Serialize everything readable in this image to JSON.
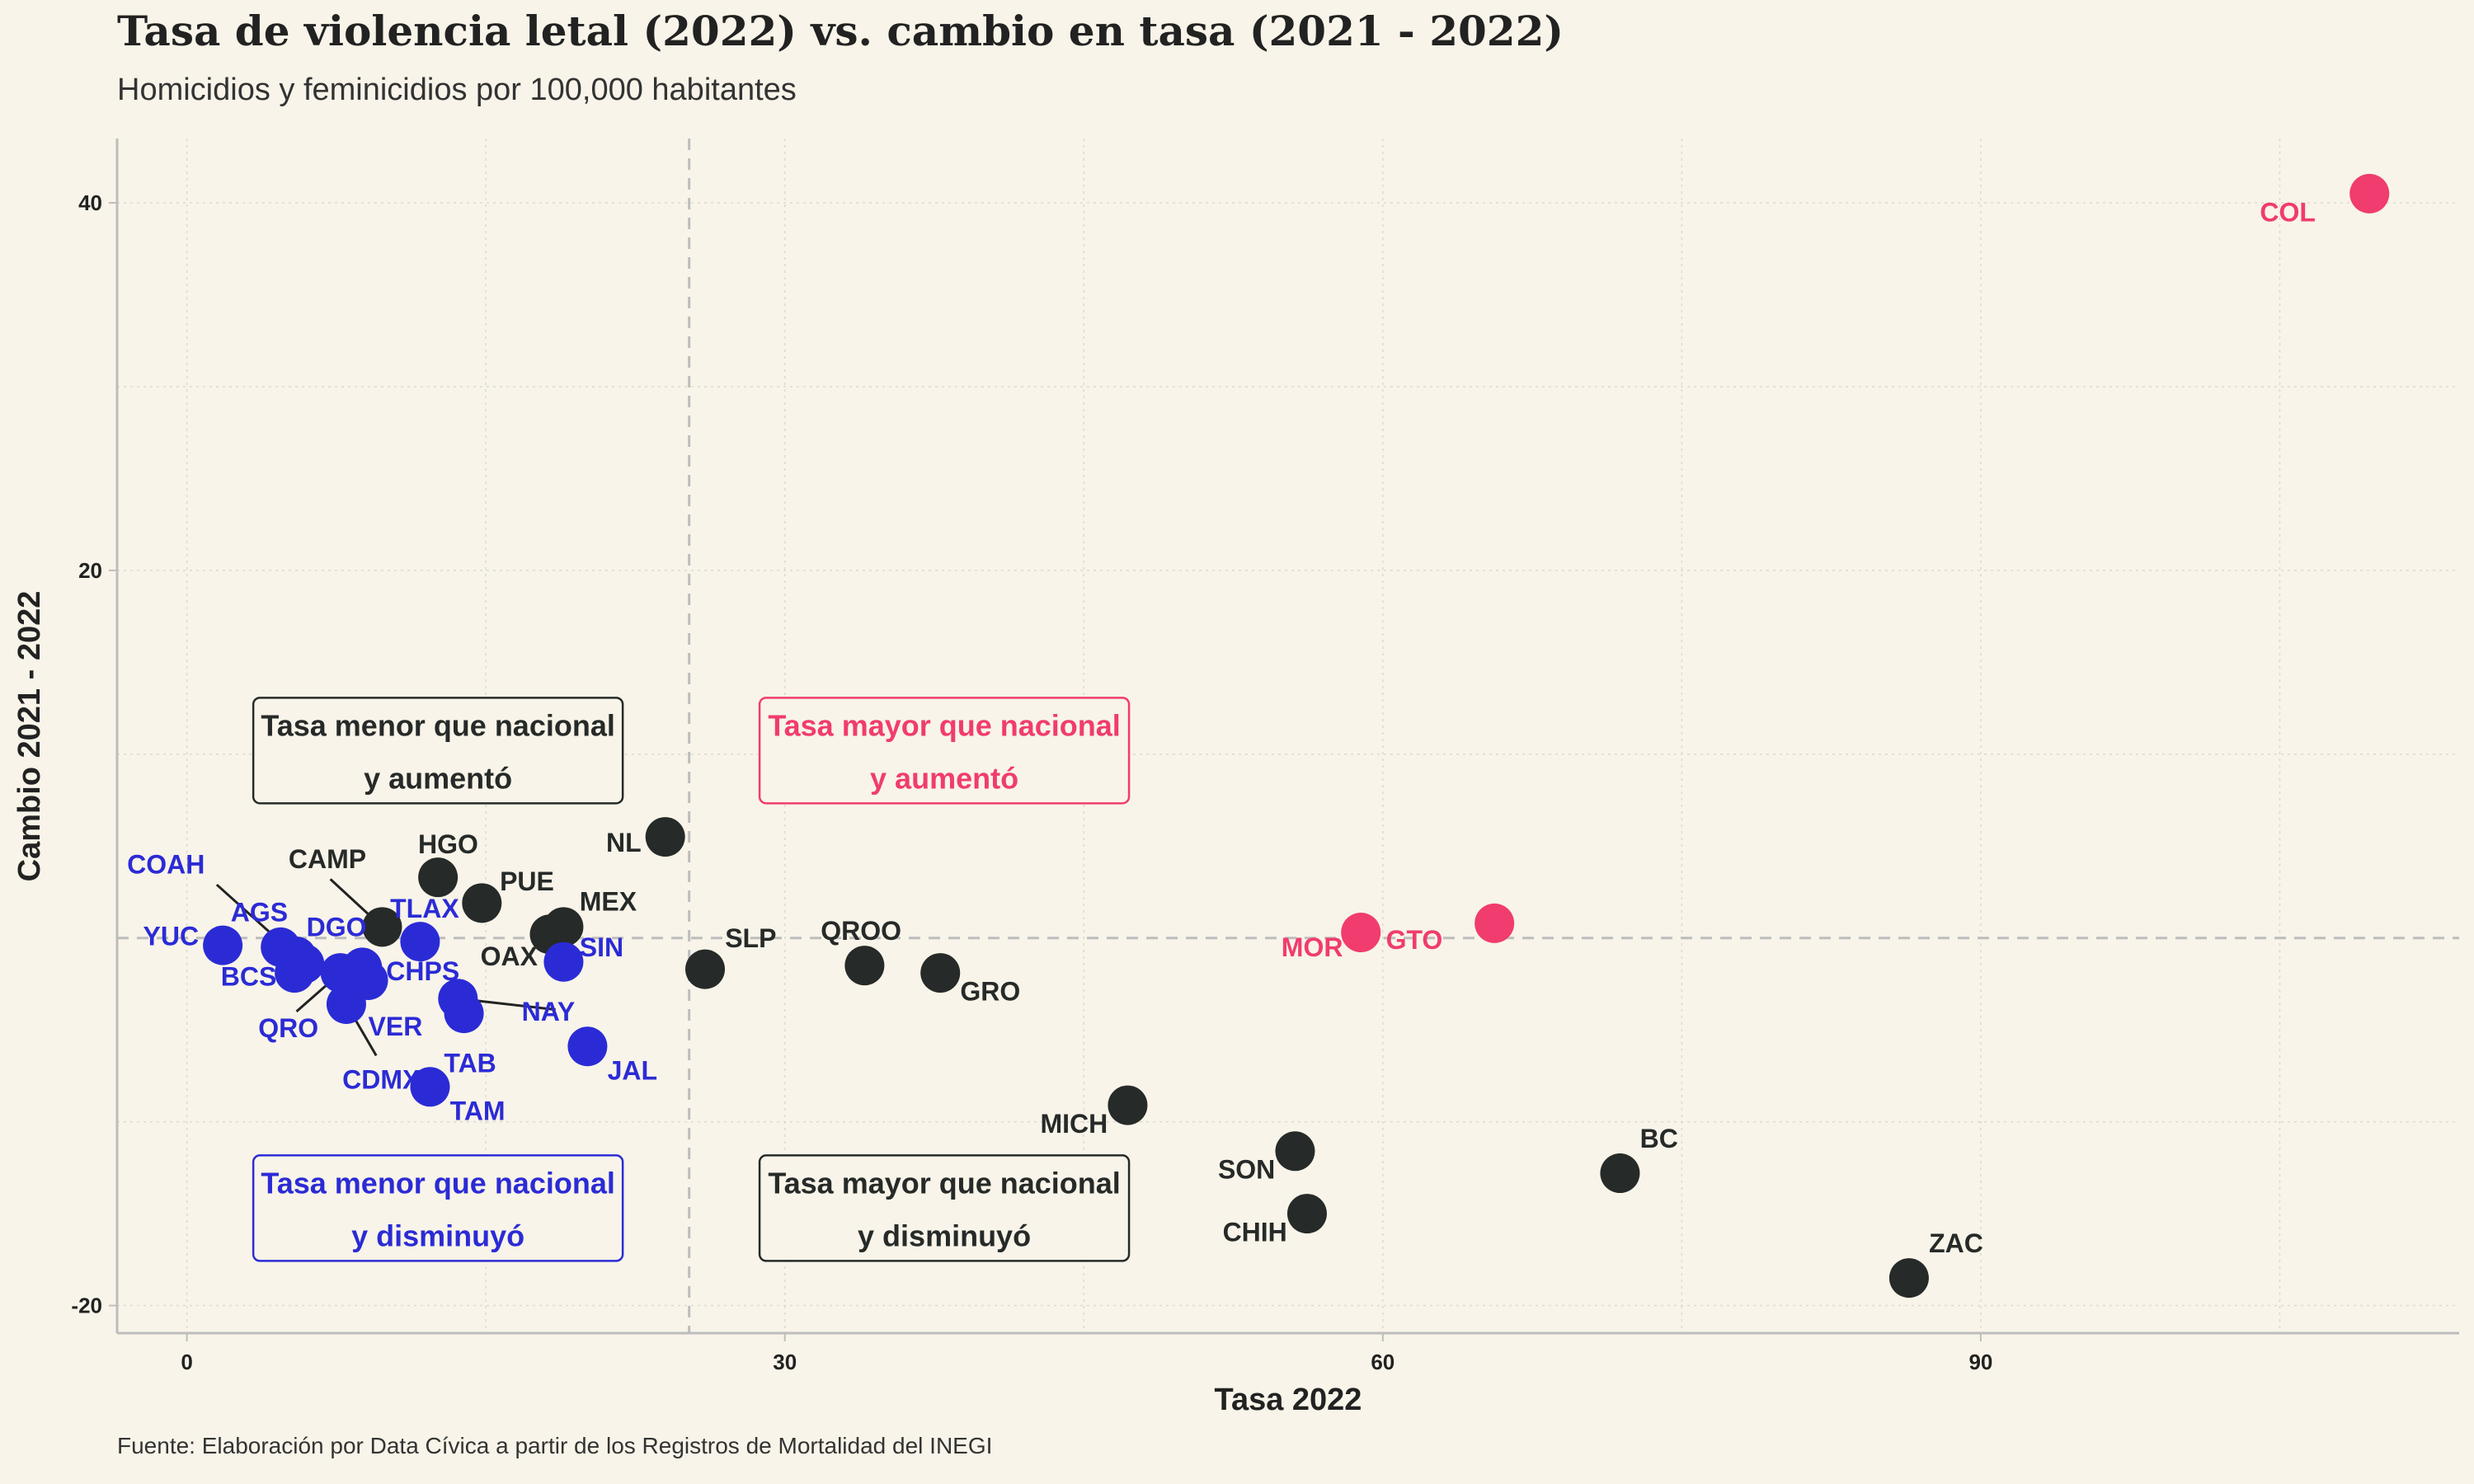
{
  "title": "Tasa de violencia letal (2022) vs. cambio en tasa (2021 - 2022)",
  "subtitle": "Homicidios y feminicidios por 100,000 habitantes",
  "source": "Fuente: Elaboración por Data Cívica a partir de los Registros de Mortalidad del INEGI",
  "colors": {
    "background": "#f8f4e9",
    "menor_disminuyo": "#2b2bd6",
    "mayor_aumento": "#f03c6e",
    "otros": "#262a28",
    "grid": "#dcd9cf",
    "axis": "#bdbdbd",
    "reference": "#bdbdbd"
  },
  "chart_data": {
    "type": "scatter",
    "title": "Tasa de violencia letal (2022) vs. cambio en tasa (2021 - 2022)",
    "xlabel": "Tasa 2022",
    "ylabel": "Cambio 2021 - 2022",
    "xlim": [
      -3.5,
      114
    ],
    "ylim": [
      -21.5,
      43.5
    ],
    "xticks": [
      0,
      30,
      60,
      90
    ],
    "yticks": [
      -20,
      20,
      40
    ],
    "ytick_labels": [
      "-20",
      "20",
      "40"
    ],
    "xtick_labels": [
      "0",
      "30",
      "60",
      "90"
    ],
    "grid": true,
    "reference_lines": {
      "x": 25.2,
      "y": 0
    },
    "quadrant_labels": [
      {
        "line1": "Tasa menor que nacional",
        "line2": "y aumentó",
        "group": "otros",
        "x": 12.6,
        "y": 10.2
      },
      {
        "line1": "Tasa mayor que nacional",
        "line2": "y aumentó",
        "group": "mayor_aumento",
        "x": 38,
        "y": 10.2
      },
      {
        "line1": "Tasa menor que nacional",
        "line2": "y disminuyó",
        "group": "menor_disminuyo",
        "x": 12.6,
        "y": -14.7
      },
      {
        "line1": "Tasa mayor que nacional",
        "line2": "y disminuyó",
        "group": "otros",
        "x": 38,
        "y": -14.7
      }
    ],
    "points": [
      {
        "label": "COL",
        "x": 109.5,
        "y": 40.5,
        "group": "mayor_aumento",
        "lx": 106.8,
        "ly": 39.0,
        "anchor": "end"
      },
      {
        "label": "GTO",
        "x": 65.6,
        "y": 0.8,
        "group": "mayor_aumento",
        "lx": 63.0,
        "ly": -0.6,
        "anchor": "end"
      },
      {
        "label": "MOR",
        "x": 58.9,
        "y": 0.3,
        "group": "mayor_aumento",
        "lx": 58.0,
        "ly": -1.0,
        "anchor": "end"
      },
      {
        "label": "NL",
        "x": 24.0,
        "y": 5.5,
        "group": "otros",
        "lx": 22.8,
        "ly": 4.7,
        "anchor": "end"
      },
      {
        "label": "SLP",
        "x": 26.0,
        "y": -1.7,
        "group": "otros",
        "lx": 27.0,
        "ly": -0.5,
        "anchor": "start"
      },
      {
        "label": "QROO",
        "x": 34.0,
        "y": -1.5,
        "group": "otros",
        "lx": 31.8,
        "ly": -0.1,
        "anchor": "start"
      },
      {
        "label": "GRO",
        "x": 37.8,
        "y": -1.9,
        "group": "otros",
        "lx": 38.8,
        "ly": -3.4,
        "anchor": "start"
      },
      {
        "label": "MICH",
        "x": 47.2,
        "y": -9.1,
        "group": "otros",
        "lx": 46.2,
        "ly": -10.6,
        "anchor": "end"
      },
      {
        "label": "SON",
        "x": 55.6,
        "y": -11.6,
        "group": "otros",
        "lx": 54.6,
        "ly": -13.1,
        "anchor": "end"
      },
      {
        "label": "CHIH",
        "x": 56.2,
        "y": -15.0,
        "group": "otros",
        "lx": 55.2,
        "ly": -16.5,
        "anchor": "end"
      },
      {
        "label": "BC",
        "x": 71.9,
        "y": -12.8,
        "group": "otros",
        "lx": 72.9,
        "ly": -11.4,
        "anchor": "start"
      },
      {
        "label": "ZAC",
        "x": 86.4,
        "y": -18.5,
        "group": "otros",
        "lx": 87.4,
        "ly": -17.1,
        "anchor": "start"
      },
      {
        "label": "HGO",
        "x": 12.6,
        "y": 3.3,
        "group": "otros",
        "lx": 11.6,
        "ly": 4.6,
        "anchor": "start"
      },
      {
        "label": "PUE",
        "x": 14.8,
        "y": 1.9,
        "group": "otros",
        "lx": 15.7,
        "ly": 2.6,
        "anchor": "start"
      },
      {
        "label": "CAMP",
        "x": 9.8,
        "y": 0.6,
        "group": "otros",
        "lx": 9.0,
        "ly": 3.8,
        "anchor": "end",
        "cx": 7.2,
        "cy": 3.2
      },
      {
        "label": "MEX",
        "x": 18.9,
        "y": 0.6,
        "group": "otros",
        "lx": 19.7,
        "ly": 1.5,
        "anchor": "start"
      },
      {
        "label": "OAX",
        "x": 18.2,
        "y": 0.2,
        "group": "otros",
        "lx": 17.6,
        "ly": -1.5,
        "anchor": "end"
      },
      {
        "label": "YUC",
        "x": 1.8,
        "y": -0.4,
        "group": "menor_disminuyo",
        "lx": 0.6,
        "ly": -0.4,
        "anchor": "end"
      },
      {
        "label": "COAH",
        "x": 5.5,
        "y": -1.0,
        "group": "menor_disminuyo",
        "lx": -3.0,
        "ly": 3.5,
        "anchor": "start",
        "cx": 1.5,
        "cy": 2.9
      },
      {
        "label": "AGS",
        "x": 4.7,
        "y": -0.5,
        "group": "menor_disminuyo",
        "lx": 2.2,
        "ly": 0.9,
        "anchor": "start"
      },
      {
        "label": "DGO",
        "x": 5.9,
        "y": -1.4,
        "group": "menor_disminuyo",
        "lx": 6.0,
        "ly": 0.1,
        "anchor": "start"
      },
      {
        "label": "BCS",
        "x": 5.4,
        "y": -1.9,
        "group": "menor_disminuyo",
        "lx": 4.5,
        "ly": -2.6,
        "anchor": "end"
      },
      {
        "label": "TLAX",
        "x": 11.7,
        "y": -0.2,
        "group": "menor_disminuyo",
        "lx": 10.2,
        "ly": 1.1,
        "anchor": "start"
      },
      {
        "label": "CHPS",
        "x": 8.8,
        "y": -1.6,
        "group": "menor_disminuyo",
        "lx": 10.0,
        "ly": -2.3,
        "anchor": "start"
      },
      {
        "label": "QRO",
        "x": 7.7,
        "y": -1.9,
        "group": "menor_disminuyo",
        "lx": 6.6,
        "ly": -5.4,
        "anchor": "end",
        "cx": 5.5,
        "cy": -4.0
      },
      {
        "label": "VER",
        "x": 9.1,
        "y": -2.3,
        "group": "menor_disminuyo",
        "lx": 9.1,
        "ly": -5.3,
        "anchor": "start"
      },
      {
        "label": "CDMX",
        "x": 8.0,
        "y": -3.6,
        "group": "menor_disminuyo",
        "lx": 7.8,
        "ly": -8.2,
        "anchor": "start",
        "cx": 9.5,
        "cy": -6.4
      },
      {
        "label": "NAY",
        "x": 13.6,
        "y": -3.3,
        "group": "menor_disminuyo",
        "lx": 16.8,
        "ly": -4.5,
        "anchor": "start",
        "cx": 18.5,
        "cy": -3.9
      },
      {
        "label": "TAB",
        "x": 13.9,
        "y": -4.1,
        "group": "menor_disminuyo",
        "lx": 12.9,
        "ly": -7.3,
        "anchor": "start"
      },
      {
        "label": "SIN",
        "x": 18.9,
        "y": -1.3,
        "group": "menor_disminuyo",
        "lx": 19.7,
        "ly": -1.0,
        "anchor": "start"
      },
      {
        "label": "JAL",
        "x": 20.1,
        "y": -5.9,
        "group": "menor_disminuyo",
        "lx": 21.1,
        "ly": -7.7,
        "anchor": "start"
      },
      {
        "label": "TAM",
        "x": 12.2,
        "y": -8.1,
        "group": "menor_disminuyo",
        "lx": 13.2,
        "ly": -9.9,
        "anchor": "start"
      }
    ]
  }
}
